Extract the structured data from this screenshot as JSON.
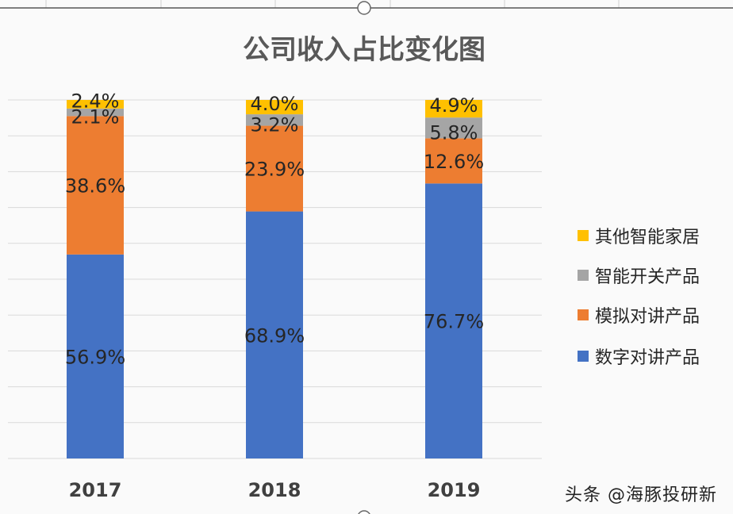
{
  "chart_data": {
    "type": "bar",
    "stacked": true,
    "title": "公司收入占比变化图",
    "categories": [
      "2017",
      "2018",
      "2019"
    ],
    "ylim": [
      0,
      100
    ],
    "unit": "%",
    "grid": true,
    "legend_position": "right",
    "series": [
      {
        "name": "数字对讲产品",
        "color": "#4472c4",
        "values": [
          56.9,
          68.9,
          76.7
        ],
        "labels": [
          "56.9%",
          "68.9%",
          "76.7%"
        ]
      },
      {
        "name": "模拟对讲产品",
        "color": "#ed7d31",
        "values": [
          38.6,
          23.9,
          12.6
        ],
        "labels": [
          "38.6%",
          "23.9%",
          "12.6%"
        ]
      },
      {
        "name": "智能开关产品",
        "color": "#a5a5a5",
        "values": [
          2.1,
          3.2,
          5.8
        ],
        "labels": [
          "2.1%",
          "3.2%",
          "5.8%"
        ]
      },
      {
        "name": "其他智能家居",
        "color": "#ffc000",
        "values": [
          2.4,
          4.0,
          4.9
        ],
        "labels": [
          "2.4%",
          "4.0%",
          "4.9%"
        ]
      }
    ]
  },
  "watermark": "头条 @海豚投研新"
}
